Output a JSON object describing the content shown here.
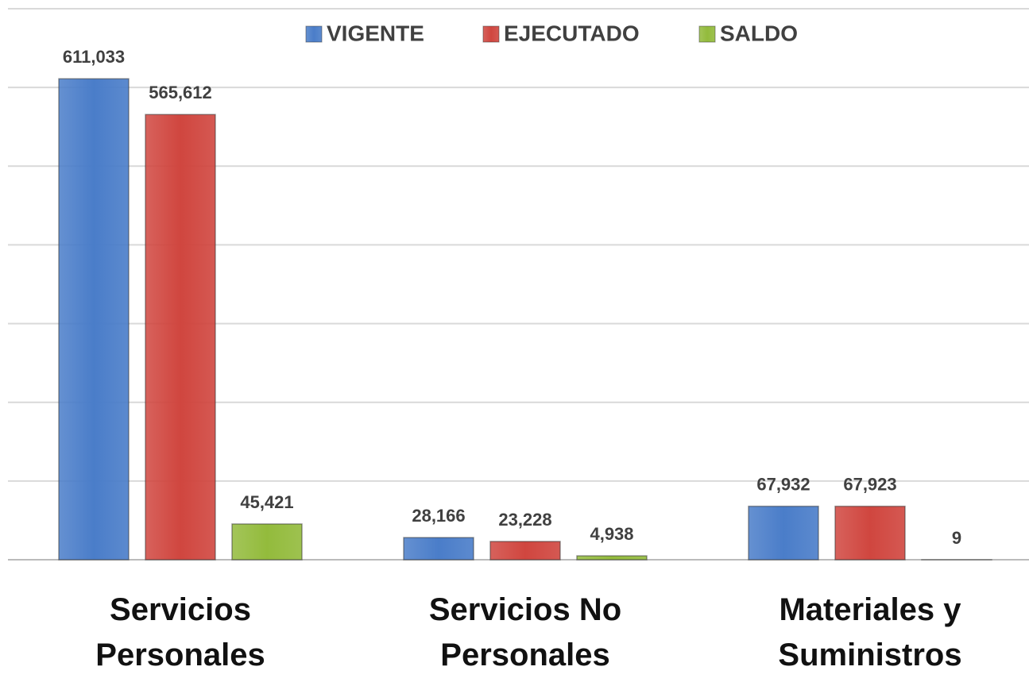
{
  "chart_data": {
    "type": "bar",
    "categories": [
      "Servicios Personales",
      "Servicios No Personales",
      "Materiales y Suministros"
    ],
    "series": [
      {
        "name": "VIGENTE",
        "color": "#4a7dc9",
        "values": [
          611033,
          28166,
          67932
        ],
        "value_labels": [
          "611,033",
          "28,166",
          "67,932"
        ]
      },
      {
        "name": "EJECUTADO",
        "color": "#d0463f",
        "values": [
          565612,
          23228,
          67923
        ],
        "value_labels": [
          "565,612",
          "23,228",
          "67,923"
        ]
      },
      {
        "name": "SALDO",
        "color": "#93bb3c",
        "values": [
          45421,
          4938,
          9
        ],
        "value_labels": [
          "45,421",
          "4,938",
          "9"
        ]
      }
    ],
    "ylim": [
      0,
      700000
    ],
    "yticks": [
      0,
      100000,
      200000,
      300000,
      400000,
      500000,
      600000,
      700000
    ],
    "grid": true,
    "legend": "top"
  }
}
